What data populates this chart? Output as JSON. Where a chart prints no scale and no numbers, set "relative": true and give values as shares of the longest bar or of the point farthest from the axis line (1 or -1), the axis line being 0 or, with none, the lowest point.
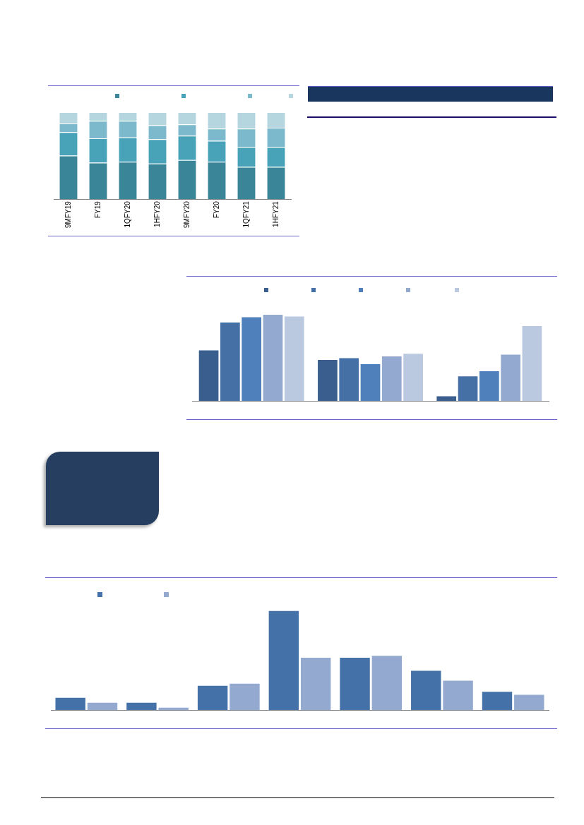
{
  "chart_data": [
    {
      "type": "bar",
      "relative": true,
      "stacked": true,
      "categories": [
        "9MFY19",
        "FY19",
        "1QFY20",
        "1HFY20",
        "9MFY20",
        "FY20",
        "1QFY21",
        "1HFY21"
      ],
      "series": [
        {
          "color": "#3a8597",
          "values": [
            0.5,
            0.42,
            0.43,
            0.41,
            0.45,
            0.43,
            0.37,
            0.37
          ]
        },
        {
          "color": "#48a2b8",
          "values": [
            0.27,
            0.28,
            0.28,
            0.28,
            0.28,
            0.24,
            0.23,
            0.23
          ]
        },
        {
          "color": "#7db9cd",
          "values": [
            0.1,
            0.2,
            0.19,
            0.16,
            0.13,
            0.14,
            0.21,
            0.22
          ]
        },
        {
          "color": "#b5d5df",
          "values": [
            0.13,
            0.1,
            0.1,
            0.15,
            0.14,
            0.19,
            0.19,
            0.18
          ]
        }
      ]
    },
    {
      "type": "bar",
      "relative": true,
      "categories": [
        null,
        null,
        null
      ],
      "series": [
        {
          "color": "#3a5f8f",
          "values": [
            0.59,
            0.48,
            0.06
          ]
        },
        {
          "color": "#4470a5",
          "values": [
            0.91,
            0.5,
            0.29
          ]
        },
        {
          "color": "#4f80bb",
          "values": [
            0.97,
            0.43,
            0.35
          ]
        },
        {
          "color": "#93a9cf",
          "values": [
            1.0,
            0.52,
            0.54
          ]
        },
        {
          "color": "#bac8e0",
          "values": [
            0.98,
            0.55,
            0.87
          ]
        }
      ]
    },
    {
      "type": "bar",
      "relative": true,
      "categories": [
        null,
        null,
        null,
        null,
        null,
        null,
        null
      ],
      "series": [
        {
          "color": "#4472a8",
          "values": [
            0.13,
            0.08,
            0.25,
            1.0,
            0.53,
            0.4,
            0.19
          ]
        },
        {
          "color": "#93a9cf",
          "values": [
            0.08,
            0.03,
            0.27,
            0.53,
            0.55,
            0.3,
            0.16
          ]
        }
      ]
    }
  ]
}
